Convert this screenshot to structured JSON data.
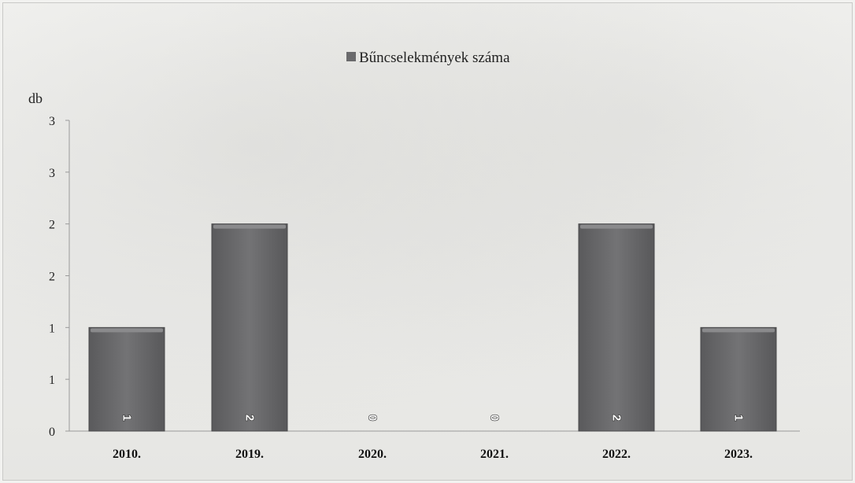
{
  "chart_data": {
    "type": "bar",
    "categories": [
      "2010.",
      "2019.",
      "2020.",
      "2021.",
      "2022.",
      "2023."
    ],
    "series": [
      {
        "name": "Bűncselekmények száma",
        "values": [
          1,
          2,
          0,
          0,
          2,
          1
        ]
      }
    ],
    "data_labels": [
      "1",
      "2",
      "0",
      "0",
      "2",
      "1"
    ],
    "ylabel": "db",
    "ylim": [
      0,
      3
    ],
    "yticks": [
      0,
      0.5,
      1,
      1.5,
      2,
      2.5,
      3
    ],
    "ytick_labels": [
      "0",
      "1",
      "1",
      "2",
      "2",
      "3",
      "3"
    ],
    "legend_position": "top-center",
    "grid": false,
    "colors": {
      "bar": "#6a6a6c",
      "bar_top": "#8a8a8c",
      "axis": "#9a9a9a"
    }
  }
}
